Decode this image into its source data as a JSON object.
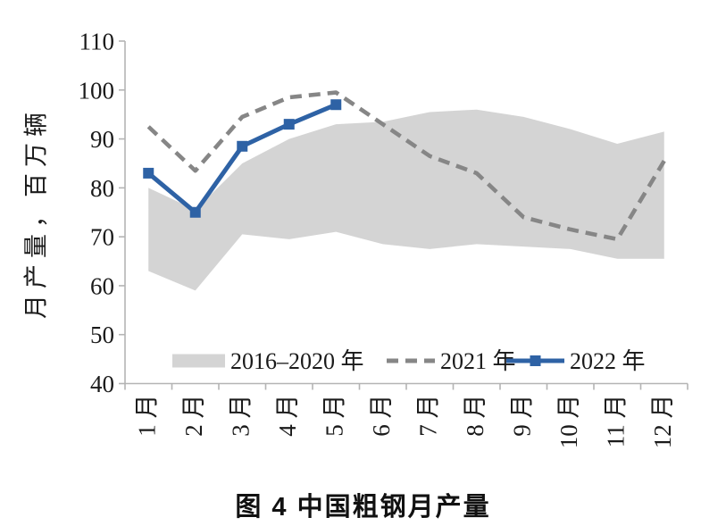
{
  "figure": {
    "caption": "图 4 中国粗钢月产量"
  },
  "chart_data": {
    "type": "line",
    "title": "图 4 中国粗钢月产量",
    "xlabel": "",
    "ylabel": "月产量，百万辆",
    "ylim": [
      40,
      110
    ],
    "yticks": [
      40,
      50,
      60,
      70,
      80,
      90,
      100,
      110
    ],
    "categories": [
      "1 月",
      "2 月",
      "3 月",
      "4 月",
      "5 月",
      "6 月",
      "7 月",
      "8 月",
      "9 月",
      "10 月",
      "11 月",
      "12 月"
    ],
    "grid": false,
    "legend_position": "inside-bottom",
    "axis_color": "#b4b4b4",
    "text_color": "#1a1a1a",
    "series": [
      {
        "name": "2016–2020 年",
        "type": "band",
        "color": "#d4d4d4",
        "max": [
          80,
          75.5,
          85,
          90,
          93,
          93.5,
          95.5,
          96,
          94.5,
          92,
          89,
          91.5
        ],
        "min": [
          63,
          59,
          70.5,
          69.5,
          71,
          68.5,
          67.5,
          68.5,
          68,
          67.5,
          65.5,
          65.5
        ]
      },
      {
        "name": "2021 年",
        "type": "line",
        "style": "dashed",
        "color": "#868686",
        "values": [
          92.5,
          83.5,
          94.5,
          98.5,
          99.5,
          93,
          86.5,
          83,
          74,
          71.5,
          69.5,
          85.5
        ]
      },
      {
        "name": "2022 年",
        "type": "line",
        "style": "solid-square-markers",
        "color": "#2e62a5",
        "values": [
          83,
          75,
          88.5,
          93,
          97,
          null,
          null,
          null,
          null,
          null,
          null,
          null
        ]
      }
    ]
  }
}
